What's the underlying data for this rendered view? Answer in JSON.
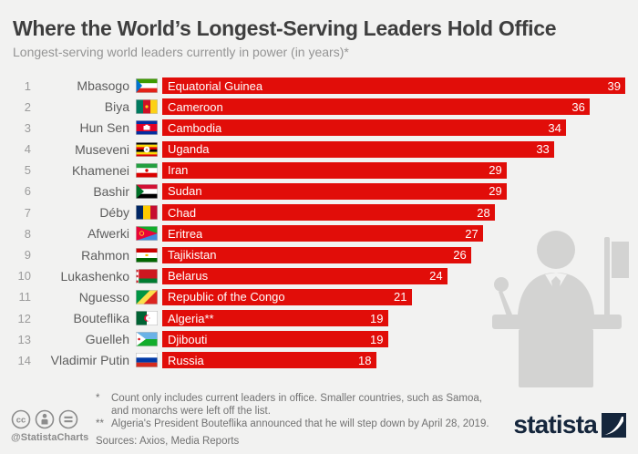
{
  "header": {
    "title": "Where the World’s Longest-Serving Leaders Hold Office",
    "subtitle": "Longest-serving world leaders currently in power (in years)*"
  },
  "chart_data": {
    "type": "bar",
    "orientation": "horizontal",
    "title": "Where the World’s Longest-Serving Leaders Hold Office",
    "subtitle": "Longest-serving world leaders currently in power (in years)",
    "unit": "years",
    "xlim": [
      0,
      39
    ],
    "bar_color": "#e10d09",
    "grid": false,
    "legend": false,
    "categories": [
      "Equatorial Guinea",
      "Cameroon",
      "Cambodia",
      "Uganda",
      "Iran",
      "Sudan",
      "Chad",
      "Eritrea",
      "Tajikistan",
      "Belarus",
      "Republic of the Congo",
      "Algeria",
      "Djibouti",
      "Russia"
    ],
    "values": [
      39,
      36,
      34,
      33,
      29,
      29,
      28,
      27,
      26,
      24,
      21,
      19,
      19,
      18
    ],
    "rows": [
      {
        "rank": "1",
        "leader": "Mbasogo",
        "country": "Equatorial Guinea",
        "value": 39,
        "flag": "gq"
      },
      {
        "rank": "2",
        "leader": "Biya",
        "country": "Cameroon",
        "value": 36,
        "flag": "cm"
      },
      {
        "rank": "3",
        "leader": "Hun Sen",
        "country": "Cambodia",
        "value": 34,
        "flag": "kh"
      },
      {
        "rank": "4",
        "leader": "Museveni",
        "country": "Uganda",
        "value": 33,
        "flag": "ug"
      },
      {
        "rank": "5",
        "leader": "Khamenei",
        "country": "Iran",
        "value": 29,
        "flag": "ir"
      },
      {
        "rank": "6",
        "leader": "Bashir",
        "country": "Sudan",
        "value": 29,
        "flag": "sd"
      },
      {
        "rank": "7",
        "leader": "Déby",
        "country": "Chad",
        "value": 28,
        "flag": "td"
      },
      {
        "rank": "8",
        "leader": "Afwerki",
        "country": "Eritrea",
        "value": 27,
        "flag": "er"
      },
      {
        "rank": "9",
        "leader": "Rahmon",
        "country": "Tajikistan",
        "value": 26,
        "flag": "tj"
      },
      {
        "rank": "10",
        "leader": "Lukashenko",
        "country": "Belarus",
        "value": 24,
        "flag": "by"
      },
      {
        "rank": "11",
        "leader": "Nguesso",
        "country": "Republic of the Congo",
        "value": 21,
        "flag": "cg"
      },
      {
        "rank": "12",
        "leader": "Bouteflika",
        "country": "Algeria**",
        "value": 19,
        "flag": "dz"
      },
      {
        "rank": "13",
        "leader": "Guelleh",
        "country": "Djibouti",
        "value": 19,
        "flag": "dj"
      },
      {
        "rank": "14",
        "leader": "Vladimir Putin",
        "country": "Russia",
        "value": 18,
        "flag": "ru"
      }
    ]
  },
  "footer": {
    "footnote1_marker": "*",
    "footnote1_line1": "Count only includes current leaders in office. Smaller countries, such as Samoa,",
    "footnote1_line2": "and monarchs were left off the list.",
    "footnote2_marker": "**",
    "footnote2": "Algeria's President Bouteflika announced that he will step down by April 28, 2019.",
    "sources": "Sources: Axios, Media Reports",
    "credit": "@StatistaCharts",
    "brand": "statista",
    "brand_color": "#15263c"
  }
}
